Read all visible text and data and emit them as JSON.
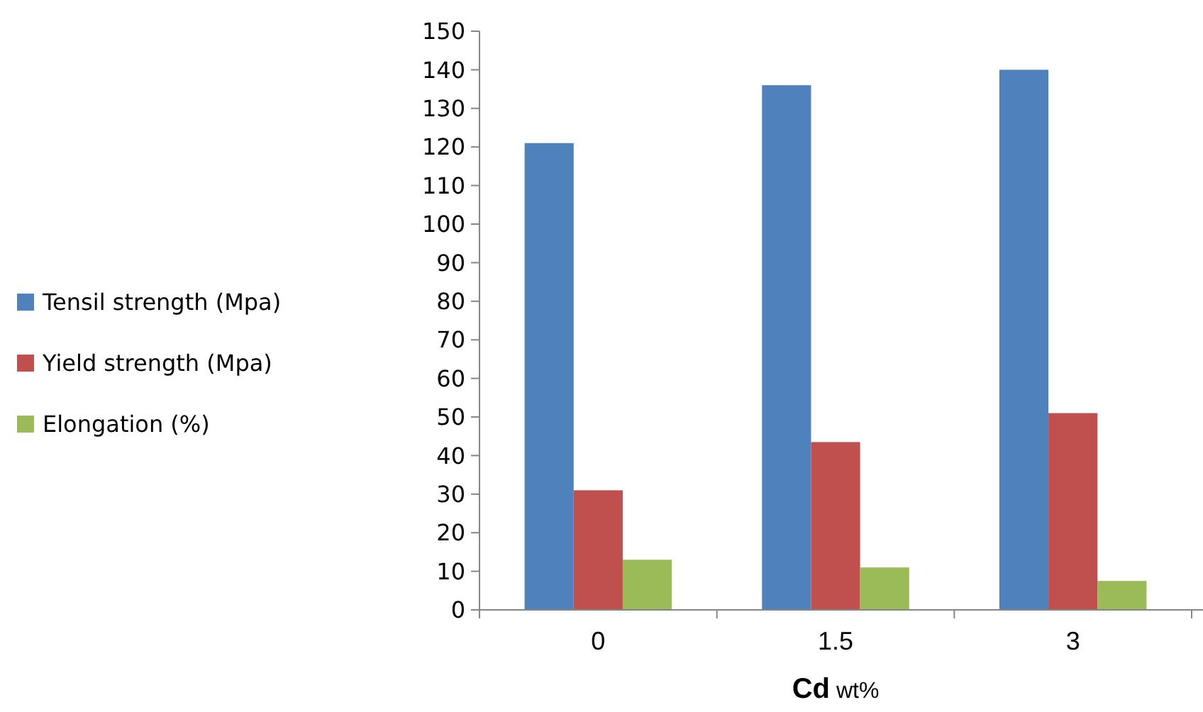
{
  "chart_data": {
    "type": "bar",
    "xlabel": "Cd wt%",
    "categories": [
      "0",
      "1.5",
      "3"
    ],
    "series": [
      {
        "name": "Tensil strength (Mpa)",
        "color": "#4f81bd",
        "values": [
          121,
          136,
          140
        ]
      },
      {
        "name": "Yield strength (Mpa)",
        "color": "#c0504d",
        "values": [
          31,
          43.5,
          51
        ]
      },
      {
        "name": "Elongation (%)",
        "color": "#9bbb59",
        "values": [
          13,
          11,
          7.5
        ]
      }
    ],
    "ylim": [
      0,
      150
    ],
    "yticks": [
      0,
      10,
      20,
      30,
      40,
      50,
      60,
      70,
      80,
      90,
      100,
      110,
      120,
      130,
      140,
      150
    ],
    "grid": false,
    "legend": "left"
  }
}
